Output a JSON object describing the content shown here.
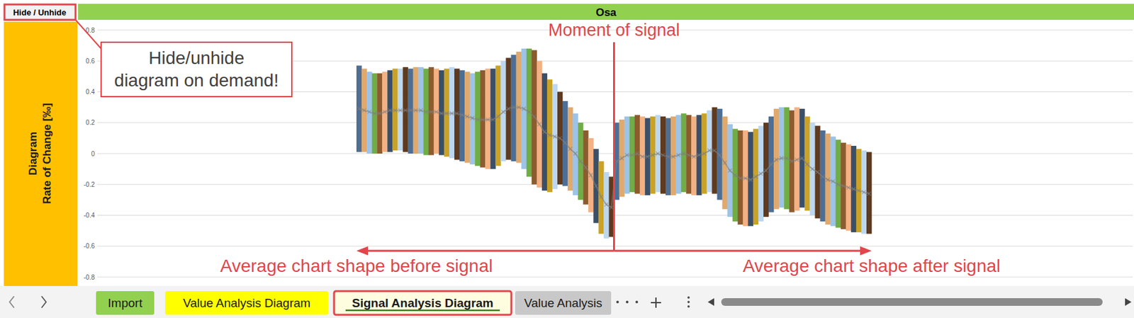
{
  "chart_data": {
    "type": "bar",
    "title": "Osa",
    "ylabel": [
      "Diagram",
      "Rate of Change [‰]"
    ],
    "annotations": {
      "hide_note": [
        "Hide/unhide",
        "diagram on demand!"
      ],
      "signal": "Moment of signal",
      "before": "Average chart shape before signal",
      "after": "Average chart shape after signal"
    },
    "categories": [
      null,
      null,
      null,
      null,
      null,
      null,
      null,
      null,
      null,
      null,
      null,
      null,
      null,
      null,
      null,
      null,
      null,
      null,
      null,
      null,
      null,
      null,
      null,
      null,
      null,
      null,
      null,
      null,
      null,
      null,
      null,
      null,
      null,
      null,
      null,
      null,
      null,
      null,
      null,
      null,
      null,
      null,
      null,
      null,
      null,
      null,
      null,
      null,
      null,
      null,
      null,
      null,
      null,
      null,
      null,
      null,
      null,
      null,
      null,
      null,
      null,
      null,
      null,
      null,
      null,
      null,
      null,
      null,
      null,
      null,
      null,
      null,
      null,
      null,
      null,
      null,
      null,
      null,
      null,
      null,
      null,
      null,
      null,
      null,
      null,
      null,
      null,
      null,
      null,
      null,
      null,
      null,
      null,
      null,
      null,
      null,
      null,
      null,
      null,
      null
    ],
    "series": [
      {
        "type": "range_bar",
        "low": [
          0.01,
          0.01,
          0.0,
          0.0,
          0.0,
          0.01,
          0.01,
          0.02,
          0.02,
          0.01,
          0.0,
          0.0,
          0.0,
          -0.01,
          -0.01,
          0.0,
          -0.01,
          -0.02,
          -0.03,
          -0.04,
          -0.05,
          -0.06,
          -0.07,
          -0.08,
          -0.09,
          -0.1,
          -0.1,
          -0.08,
          -0.05,
          -0.04,
          -0.05,
          -0.06,
          -0.1,
          -0.15,
          -0.2,
          -0.22,
          -0.24,
          -0.25,
          -0.23,
          -0.2,
          -0.21,
          -0.24,
          -0.27,
          -0.3,
          -0.33,
          -0.38,
          -0.45,
          -0.52,
          -0.55,
          -0.54,
          -0.3,
          -0.28,
          -0.26,
          -0.25,
          -0.26,
          -0.27,
          -0.27,
          -0.26,
          -0.25,
          -0.26,
          -0.27,
          -0.27,
          -0.26,
          -0.25,
          -0.26,
          -0.27,
          -0.27,
          -0.26,
          -0.25,
          -0.26,
          -0.3,
          -0.36,
          -0.41,
          -0.44,
          -0.46,
          -0.47,
          -0.47,
          -0.46,
          -0.44,
          -0.41,
          -0.38,
          -0.36,
          -0.35,
          -0.36,
          -0.38,
          -0.37,
          -0.35,
          -0.37,
          -0.4,
          -0.42,
          -0.44,
          -0.46,
          -0.47,
          -0.48,
          -0.49,
          -0.5,
          -0.51,
          -0.51,
          -0.52,
          -0.52
        ],
        "high": [
          0.57,
          0.55,
          0.53,
          0.52,
          0.52,
          0.53,
          0.54,
          0.55,
          0.55,
          0.56,
          0.55,
          0.56,
          0.56,
          0.55,
          0.56,
          0.55,
          0.54,
          0.55,
          0.56,
          0.55,
          0.54,
          0.53,
          0.52,
          0.53,
          0.54,
          0.55,
          0.55,
          0.57,
          0.6,
          0.62,
          0.64,
          0.66,
          0.68,
          0.68,
          0.67,
          0.6,
          0.52,
          0.48,
          0.45,
          0.4,
          0.34,
          0.3,
          0.26,
          0.2,
          0.15,
          0.1,
          0.03,
          -0.05,
          -0.12,
          -0.15,
          0.2,
          0.22,
          0.24,
          0.24,
          0.25,
          0.24,
          0.23,
          0.24,
          0.25,
          0.24,
          0.23,
          0.24,
          0.25,
          0.26,
          0.25,
          0.24,
          0.25,
          0.26,
          0.28,
          0.3,
          0.29,
          0.24,
          0.19,
          0.16,
          0.15,
          0.15,
          0.14,
          0.16,
          0.18,
          0.2,
          0.24,
          0.29,
          0.3,
          0.3,
          0.28,
          0.3,
          0.29,
          0.24,
          0.2,
          0.18,
          0.15,
          0.13,
          0.11,
          0.09,
          0.07,
          0.06,
          0.05,
          0.03,
          0.02,
          0.01
        ],
        "colors": [
          "#4e6e94",
          "#e0a96d",
          "#9dc3e6",
          "#70ad47",
          "#8c5b2e",
          "#f4b183",
          "#3b5068",
          "#c9a227",
          "#bdd7ee",
          "#5e3a1f",
          "#4e6e94",
          "#e0a96d",
          "#9dc3e6",
          "#70ad47",
          "#8c5b2e",
          "#f4b183",
          "#3b5068",
          "#c9a227",
          "#bdd7ee",
          "#5e3a1f",
          "#4e6e94",
          "#e0a96d",
          "#9dc3e6",
          "#70ad47",
          "#8c5b2e",
          "#f4b183",
          "#3b5068",
          "#c9a227",
          "#bdd7ee",
          "#5e3a1f",
          "#4e6e94",
          "#e0a96d",
          "#9dc3e6",
          "#70ad47",
          "#8c5b2e",
          "#f4b183",
          "#3b5068",
          "#c9a227",
          "#bdd7ee",
          "#5e3a1f",
          "#4e6e94",
          "#e0a96d",
          "#9dc3e6",
          "#70ad47",
          "#8c5b2e",
          "#f4b183",
          "#3b5068",
          "#c9a227",
          "#bdd7ee",
          "#5e3a1f",
          "#4e6e94",
          "#e0a96d",
          "#9dc3e6",
          "#70ad47",
          "#8c5b2e",
          "#f4b183",
          "#3b5068",
          "#c9a227",
          "#bdd7ee",
          "#5e3a1f",
          "#4e6e94",
          "#e0a96d",
          "#9dc3e6",
          "#70ad47",
          "#8c5b2e",
          "#f4b183",
          "#3b5068",
          "#c9a227",
          "#bdd7ee",
          "#5e3a1f",
          "#4e6e94",
          "#e0a96d",
          "#9dc3e6",
          "#70ad47",
          "#8c5b2e",
          "#f4b183",
          "#3b5068",
          "#c9a227",
          "#bdd7ee",
          "#5e3a1f",
          "#4e6e94",
          "#e0a96d",
          "#9dc3e6",
          "#70ad47",
          "#8c5b2e",
          "#f4b183",
          "#3b5068",
          "#c9a227",
          "#bdd7ee",
          "#5e3a1f",
          "#4e6e94",
          "#e0a96d",
          "#9dc3e6",
          "#70ad47",
          "#8c5b2e",
          "#f4b183",
          "#3b5068",
          "#c9a227",
          "#bdd7ee",
          "#5e3a1f"
        ]
      },
      {
        "type": "line",
        "marker": "x",
        "color": "#7f7f7f",
        "values": [
          0.29,
          0.28,
          0.27,
          0.26,
          0.26,
          0.27,
          0.28,
          0.28,
          0.28,
          0.28,
          0.28,
          0.28,
          0.28,
          0.27,
          0.27,
          0.27,
          0.26,
          0.26,
          0.26,
          0.26,
          0.25,
          0.24,
          0.23,
          0.22,
          0.22,
          0.22,
          0.22,
          0.24,
          0.27,
          0.29,
          0.3,
          0.3,
          0.29,
          0.27,
          0.24,
          0.19,
          0.14,
          0.12,
          0.11,
          0.1,
          0.07,
          0.03,
          0.0,
          -0.05,
          -0.09,
          -0.14,
          -0.21,
          -0.28,
          -0.33,
          -0.35,
          -0.05,
          -0.03,
          -0.01,
          -0.01,
          0.0,
          -0.02,
          -0.02,
          -0.01,
          0.0,
          -0.01,
          -0.02,
          -0.02,
          -0.01,
          0.0,
          -0.01,
          -0.02,
          -0.01,
          0.0,
          0.02,
          0.02,
          -0.01,
          -0.06,
          -0.11,
          -0.14,
          -0.16,
          -0.16,
          -0.17,
          -0.15,
          -0.13,
          -0.11,
          -0.07,
          -0.04,
          -0.03,
          -0.03,
          -0.05,
          -0.04,
          -0.03,
          -0.07,
          -0.1,
          -0.12,
          -0.15,
          -0.17,
          -0.18,
          -0.2,
          -0.21,
          -0.22,
          -0.23,
          -0.24,
          -0.25,
          -0.26
        ]
      }
    ],
    "ylim": [
      -0.8,
      0.8
    ],
    "yticks": [
      -0.8,
      -0.6,
      -0.4,
      -0.2,
      0,
      0.2,
      0.4,
      0.6,
      0.8
    ],
    "grid": true,
    "tick_labels": "y"
  },
  "ui": {
    "button": "Hide / Unhide",
    "tabs": [
      "Import",
      "Value Analysis Diagram",
      "Signal Analysis Diagram",
      "Value Analysis"
    ]
  }
}
